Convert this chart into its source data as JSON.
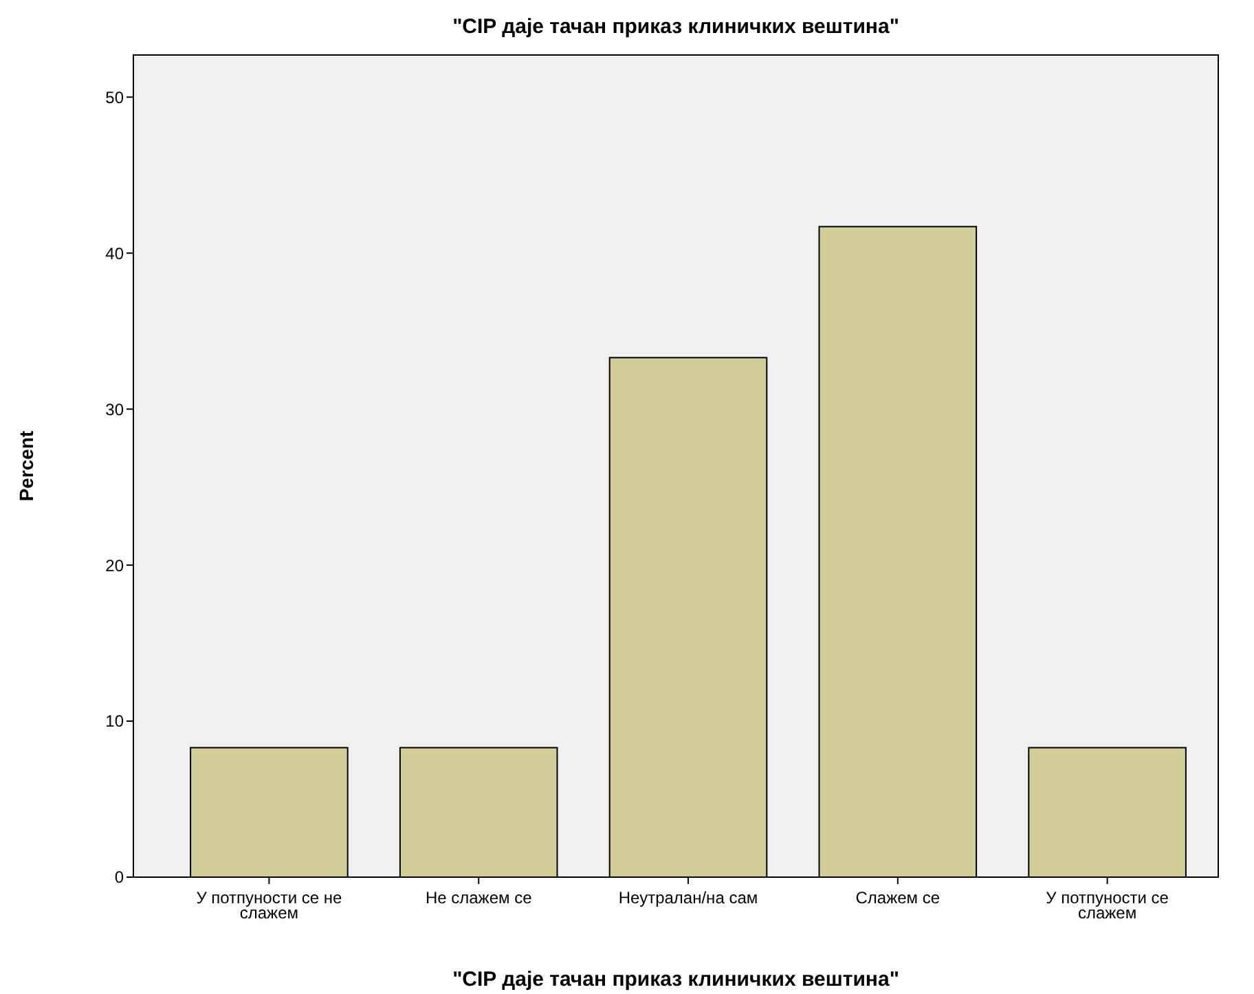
{
  "chart_data": {
    "type": "bar",
    "title": "\"CIP даје тачан приказ  клиничких вештина\"",
    "xlabel": "\"CIP даје тачан приказ  клиничких вештина\"",
    "ylabel": "Percent",
    "categories": [
      "У потпуности се не слажем",
      "Не слажем се",
      "Неутралан/на сам",
      "Слажем се",
      "У потпуности се слажем"
    ],
    "values": [
      8.3,
      8.3,
      33.3,
      41.7,
      8.3
    ],
    "color": "#d3ce97",
    "ylim": [
      0,
      52.7
    ],
    "yticks": [
      0,
      10,
      20,
      30,
      40,
      50
    ],
    "grid": false
  }
}
